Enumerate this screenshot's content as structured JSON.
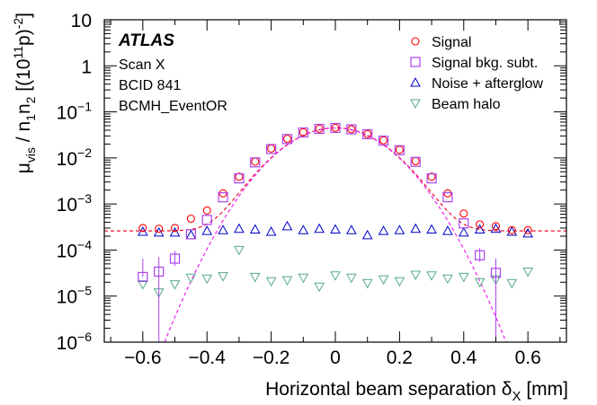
{
  "chart_data": {
    "type": "scatter",
    "title": "",
    "xlabel_main": "Horizontal beam separation δ",
    "xlabel_sub": "X",
    "xlabel_unit": " [mm]",
    "ylabel_parts": {
      "mu": "μ",
      "vis": "vis",
      "sep": " / n",
      "one": "1",
      "n2": "n",
      "two": "2",
      "bracket": " [(10",
      "eleven": "11",
      "p": "p)",
      "minus2": "-2",
      "close": "]"
    },
    "xlim": [
      -0.72,
      0.72
    ],
    "ylim": [
      1e-06,
      10
    ],
    "yscale": "log",
    "x_ticks": [
      -0.6,
      -0.4,
      -0.2,
      0,
      0.2,
      0.4,
      0.6
    ],
    "x_tick_labels": [
      "−0.6",
      "−0.4",
      "−0.2",
      "0",
      "0.2",
      "0.4",
      "0.6"
    ],
    "y_ticks": [
      1e-06,
      1e-05,
      0.0001,
      0.001,
      0.01,
      0.1,
      1,
      10
    ],
    "y_tick_labels": [
      {
        "base": "10",
        "exp": "−6"
      },
      {
        "base": "10",
        "exp": "−5"
      },
      {
        "base": "10",
        "exp": "−4"
      },
      {
        "base": "10",
        "exp": "−3"
      },
      {
        "base": "10",
        "exp": "−2"
      },
      {
        "base": "10",
        "exp": "−1"
      },
      {
        "base": "1",
        "exp": ""
      },
      {
        "base": "10",
        "exp": ""
      }
    ],
    "annotations": {
      "atlas": "ATLAS",
      "lines": [
        "Scan X",
        "BCID 841",
        "BCMH_EventOR"
      ]
    },
    "legend_position": "top-right",
    "x": [
      -0.6,
      -0.55,
      -0.5,
      -0.45,
      -0.4,
      -0.35,
      -0.3,
      -0.25,
      -0.2,
      -0.15,
      -0.1,
      -0.05,
      0,
      0.05,
      0.1,
      0.15,
      0.2,
      0.25,
      0.3,
      0.35,
      0.4,
      0.45,
      0.5,
      0.55,
      0.6
    ],
    "series": [
      {
        "name": "Signal",
        "marker": "circle",
        "color": "#ff0000",
        "values": [
          0.0003,
          0.00029,
          0.0003,
          0.00048,
          0.00072,
          0.0017,
          0.0039,
          0.0083,
          0.016,
          0.026,
          0.036,
          0.043,
          0.045,
          0.042,
          0.033,
          0.024,
          0.015,
          0.0085,
          0.0039,
          0.0017,
          0.00062,
          0.00036,
          0.00033,
          0.00027,
          0.00027
        ]
      },
      {
        "name": "Signal bkg. subt.",
        "marker": "square",
        "color": "#aa44ee",
        "values": [
          2.6e-05,
          3.4e-05,
          6.5e-05,
          0.00022,
          0.00045,
          0.0014,
          0.0036,
          0.008,
          0.0156,
          0.0257,
          0.0357,
          0.0427,
          0.0447,
          0.0417,
          0.0327,
          0.0237,
          0.0147,
          0.0082,
          0.0036,
          0.0014,
          0.00038,
          7.7e-05,
          3.2e-05,
          null,
          null
        ],
        "errors_low": [
          null,
          1e-06,
          4.5e-05,
          null,
          null,
          null,
          null,
          null,
          null,
          null,
          null,
          null,
          null,
          null,
          null,
          null,
          null,
          null,
          null,
          null,
          null,
          5.5e-05,
          1e-06,
          null,
          null
        ],
        "errors_high": [
          6.5e-05,
          7e-05,
          9.5e-05,
          null,
          null,
          null,
          null,
          null,
          null,
          null,
          null,
          null,
          null,
          null,
          null,
          null,
          null,
          null,
          null,
          null,
          null,
          0.00011,
          6.5e-05,
          null,
          null
        ]
      },
      {
        "name": "Noise + afterglow",
        "marker": "triangle-up",
        "color": "#0000cc",
        "values": [
          0.00025,
          0.00024,
          0.00024,
          0.00021,
          0.00026,
          0.00027,
          0.00029,
          0.00028,
          0.00025,
          0.00033,
          0.00027,
          0.00029,
          0.00028,
          0.00027,
          0.00021,
          0.00026,
          0.00027,
          0.00029,
          0.00028,
          0.00026,
          0.00024,
          0.00028,
          0.00029,
          0.00025,
          0.00023
        ]
      },
      {
        "name": "Beam halo",
        "marker": "triangle-down",
        "color": "#55aa88",
        "values": [
          1.8e-05,
          1.2e-05,
          1.8e-05,
          2.5e-05,
          2.4e-05,
          2.7e-05,
          0.0001,
          2.6e-05,
          2.1e-05,
          2.2e-05,
          2.5e-05,
          1.6e-05,
          2.8e-05,
          2.5e-05,
          1.9e-05,
          2.3e-05,
          2.1e-05,
          2.9e-05,
          2.8e-05,
          2.4e-05,
          2.6e-05,
          2e-05,
          2.3e-05,
          1.9e-05,
          3.4e-05
        ]
      }
    ],
    "fits": [
      {
        "for": "Signal",
        "color": "#ee1133",
        "style": "dashed",
        "baseline": 0.00026,
        "peak": 0.0448,
        "sigma": 0.115
      },
      {
        "for": "Signal bkg. subt.",
        "color": "#ee22ee",
        "style": "dashed",
        "baseline": 0,
        "peak": 0.0446,
        "sigma": 0.115
      }
    ]
  }
}
